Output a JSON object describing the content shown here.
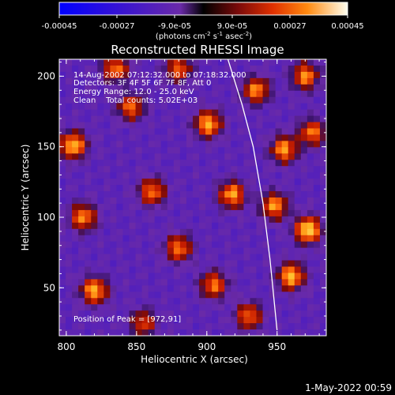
{
  "chart_data": {
    "type": "heatmap",
    "title": "Reconstructed RHESSI Image",
    "xlabel": "Heliocentric X (arcsec)",
    "ylabel": "Heliocentric Y (arcsec)",
    "xlim": [
      795,
      985
    ],
    "ylim": [
      16,
      212
    ],
    "x_ticks": [
      800,
      850,
      900,
      950
    ],
    "y_ticks": [
      50,
      100,
      150,
      200
    ],
    "grid": false,
    "colorbar": {
      "position": "top",
      "ticks": [
        "-0.00045",
        "-0.00027",
        "-9.0e-05",
        "9.0e-05",
        "0.00027",
        "0.00045"
      ],
      "unit_prefix": "(photons cm",
      "unit_exp1": "-2",
      "unit_mid": " s",
      "unit_exp2": "-1",
      "unit_mid2": " asec",
      "unit_exp3": "-2",
      "unit_suffix": ")",
      "range": [
        -0.00045,
        0.00045
      ]
    },
    "annotations": {
      "time": "14-Aug-2002 07:12:32.000 to 07:18:32.000",
      "detectors": "Detectors: 3F 4F 5F 6F 7F 8F, Att 0",
      "energy": "Energy Range: 12.0 - 25.0 keV",
      "clean": "Clean    Total counts: 5.02E+03",
      "peak": "Position of Peak = [972,91]"
    },
    "hotspots": [
      {
        "x": 972,
        "y": 91,
        "v": 0.00045
      },
      {
        "x": 955,
        "y": 148,
        "v": 0.00035
      },
      {
        "x": 901,
        "y": 166,
        "v": 0.00038
      },
      {
        "x": 805,
        "y": 151,
        "v": 0.0004
      },
      {
        "x": 812,
        "y": 100,
        "v": 0.00032
      },
      {
        "x": 820,
        "y": 48,
        "v": 0.00038
      },
      {
        "x": 861,
        "y": 118,
        "v": 0.0003
      },
      {
        "x": 880,
        "y": 78,
        "v": 0.0003
      },
      {
        "x": 918,
        "y": 116,
        "v": 0.00036
      },
      {
        "x": 948,
        "y": 108,
        "v": 0.00034
      },
      {
        "x": 960,
        "y": 58,
        "v": 0.0004
      },
      {
        "x": 935,
        "y": 190,
        "v": 0.00032
      },
      {
        "x": 905,
        "y": 52,
        "v": 0.0003
      },
      {
        "x": 846,
        "y": 178,
        "v": 0.00028
      },
      {
        "x": 970,
        "y": 200,
        "v": 0.00033
      },
      {
        "x": 835,
        "y": 205,
        "v": 0.0003
      },
      {
        "x": 880,
        "y": 205,
        "v": 0.00026
      },
      {
        "x": 930,
        "y": 30,
        "v": 0.00028
      },
      {
        "x": 975,
        "y": 160,
        "v": 0.0003
      },
      {
        "x": 855,
        "y": 25,
        "v": 0.00022
      }
    ],
    "limb_curve": [
      [
        915,
        212
      ],
      [
        925,
        180
      ],
      [
        933,
        150
      ],
      [
        940,
        110
      ],
      [
        945,
        70
      ],
      [
        950,
        20
      ]
    ]
  },
  "footer": {
    "timestamp": "1-May-2022 00:59"
  }
}
